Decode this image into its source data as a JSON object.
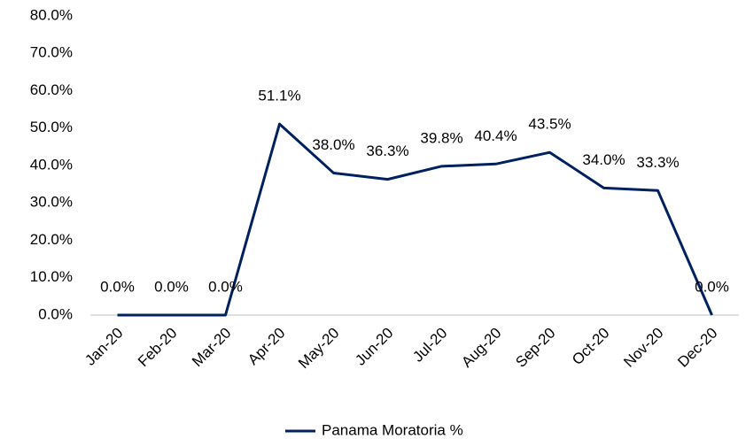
{
  "chart_data": {
    "type": "line",
    "categories": [
      "Jan-20",
      "Feb-20",
      "Mar-20",
      "Apr-20",
      "May-20",
      "Jun-20",
      "Jul-20",
      "Aug-20",
      "Sep-20",
      "Oct-20",
      "Nov-20",
      "Dec-20"
    ],
    "series": [
      {
        "name": "Panama Moratoria %",
        "color": "#002060",
        "values": [
          0,
          0,
          0,
          51.1,
          38.0,
          36.3,
          39.8,
          40.4,
          43.5,
          34.0,
          33.3,
          0
        ],
        "value_labels": [
          "0.0%",
          "0.0%",
          "0.0%",
          "51.1%",
          "38.0%",
          "36.3%",
          "39.8%",
          "40.4%",
          "43.5%",
          "34.0%",
          "33.3%",
          "0.0%"
        ]
      }
    ],
    "ylim": [
      0,
      80
    ],
    "yticks": [
      {
        "value": 0,
        "label": "0.0%"
      },
      {
        "value": 10,
        "label": "10.0%"
      },
      {
        "value": 20,
        "label": "20.0%"
      },
      {
        "value": 30,
        "label": "30.0%"
      },
      {
        "value": 40,
        "label": "40.0%"
      },
      {
        "value": 50,
        "label": "50.0%"
      },
      {
        "value": 60,
        "label": "60.0%"
      },
      {
        "value": 70,
        "label": "70.0%"
      },
      {
        "value": 80,
        "label": "80.0%"
      }
    ],
    "grid": false,
    "legend": "bottom"
  }
}
